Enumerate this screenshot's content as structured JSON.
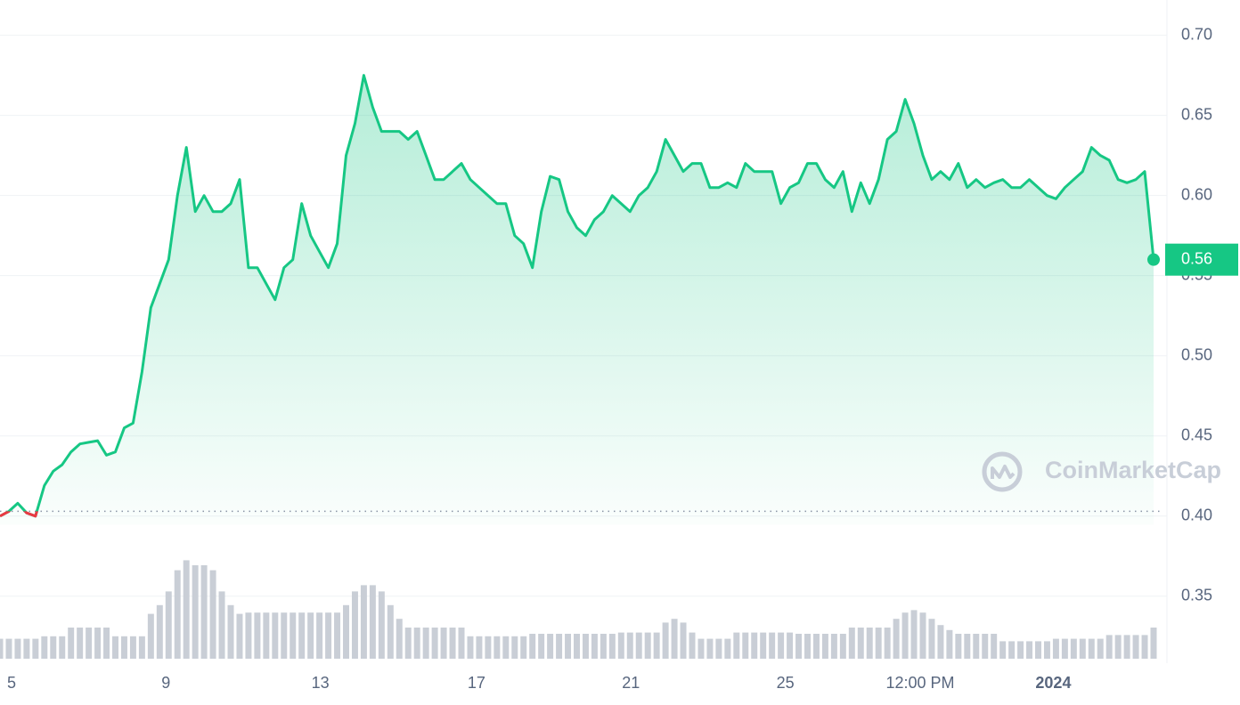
{
  "chart_data": {
    "type": "line",
    "watermark": "CoinMarketCap",
    "grid": true,
    "baseline": 0.403,
    "xlim": [
      0,
      130
    ],
    "xticks": [
      {
        "value": 1.3,
        "label": "5"
      },
      {
        "value": 18.7,
        "label": "9"
      },
      {
        "value": 36.1,
        "label": "13"
      },
      {
        "value": 53.7,
        "label": "17"
      },
      {
        "value": 71.1,
        "label": "21"
      },
      {
        "value": 88.5,
        "label": "25"
      },
      {
        "value": 103.7,
        "label": "12:00 PM"
      },
      {
        "value": 118.7,
        "label": "2024",
        "bold": true
      }
    ],
    "ylim": [
      0.311,
      0.722
    ],
    "yticks": [
      0.35,
      {
        "value": 0.4,
        "label": "0.40"
      },
      0.45,
      {
        "value": 0.5,
        "label": "0.50"
      },
      0.55,
      {
        "value": 0.6,
        "label": "0.60"
      },
      0.65,
      {
        "value": 0.7,
        "label": "0.70"
      }
    ],
    "series": [
      {
        "color": "#16c784",
        "down_color": "#ea3943",
        "values": [
          0.4,
          0.403,
          0.408,
          0.402,
          0.4,
          0.419,
          0.428,
          0.432,
          0.44,
          0.445,
          0.446,
          0.447,
          0.438,
          0.44,
          0.455,
          0.458,
          0.49,
          0.53,
          0.545,
          0.56,
          0.6,
          0.63,
          0.59,
          0.6,
          0.59,
          0.59,
          0.595,
          0.61,
          0.555,
          0.555,
          0.545,
          0.535,
          0.555,
          0.56,
          0.595,
          0.575,
          0.565,
          0.555,
          0.57,
          0.625,
          0.645,
          0.675,
          0.655,
          0.64,
          0.64,
          0.64,
          0.635,
          0.64,
          0.625,
          0.61,
          0.61,
          0.615,
          0.62,
          0.61,
          0.605,
          0.6,
          0.595,
          0.595,
          0.575,
          0.57,
          0.555,
          0.59,
          0.612,
          0.61,
          0.59,
          0.58,
          0.575,
          0.585,
          0.59,
          0.6,
          0.595,
          0.59,
          0.6,
          0.605,
          0.615,
          0.635,
          0.625,
          0.615,
          0.62,
          0.62,
          0.605,
          0.605,
          0.608,
          0.605,
          0.62,
          0.615,
          0.615,
          0.615,
          0.595,
          0.605,
          0.608,
          0.62,
          0.62,
          0.61,
          0.605,
          0.615,
          0.59,
          0.608,
          0.595,
          0.61,
          0.635,
          0.64,
          0.66,
          0.645,
          0.625,
          0.61,
          0.615,
          0.61,
          0.62,
          0.605,
          0.61,
          0.605,
          0.608,
          0.61,
          0.605,
          0.605,
          0.61,
          0.605,
          0.6,
          0.598,
          0.605,
          0.61,
          0.615,
          0.63,
          0.625,
          0.622,
          0.61,
          0.608,
          0.61,
          0.615,
          0.56
        ]
      }
    ],
    "volume": {
      "color": "#c9ced6",
      "ylim": [
        0,
        100
      ],
      "values": [
        16,
        16,
        16,
        16,
        16,
        18,
        18,
        18,
        25,
        25,
        25,
        25,
        25,
        18,
        18,
        18,
        18,
        36,
        43,
        54,
        71,
        79,
        75,
        75,
        71,
        54,
        43,
        36,
        37,
        37,
        37,
        37,
        37,
        37,
        37,
        37,
        37,
        37,
        37,
        43,
        54,
        59,
        59,
        54,
        43,
        32,
        25,
        25,
        25,
        25,
        25,
        25,
        25,
        18,
        18,
        18,
        18,
        18,
        18,
        18,
        20,
        20,
        20,
        20,
        20,
        20,
        20,
        20,
        20,
        20,
        21,
        21,
        21,
        21,
        21,
        29,
        32,
        29,
        21,
        16,
        16,
        16,
        16,
        21,
        21,
        21,
        21,
        21,
        21,
        21,
        20,
        20,
        20,
        20,
        20,
        20,
        25,
        25,
        25,
        25,
        25,
        32,
        37,
        39,
        37,
        32,
        27,
        23,
        20,
        20,
        20,
        20,
        20,
        14,
        14,
        14,
        14,
        14,
        14,
        16,
        16,
        16,
        16,
        16,
        16,
        19,
        19,
        19,
        19,
        19,
        25
      ]
    }
  }
}
